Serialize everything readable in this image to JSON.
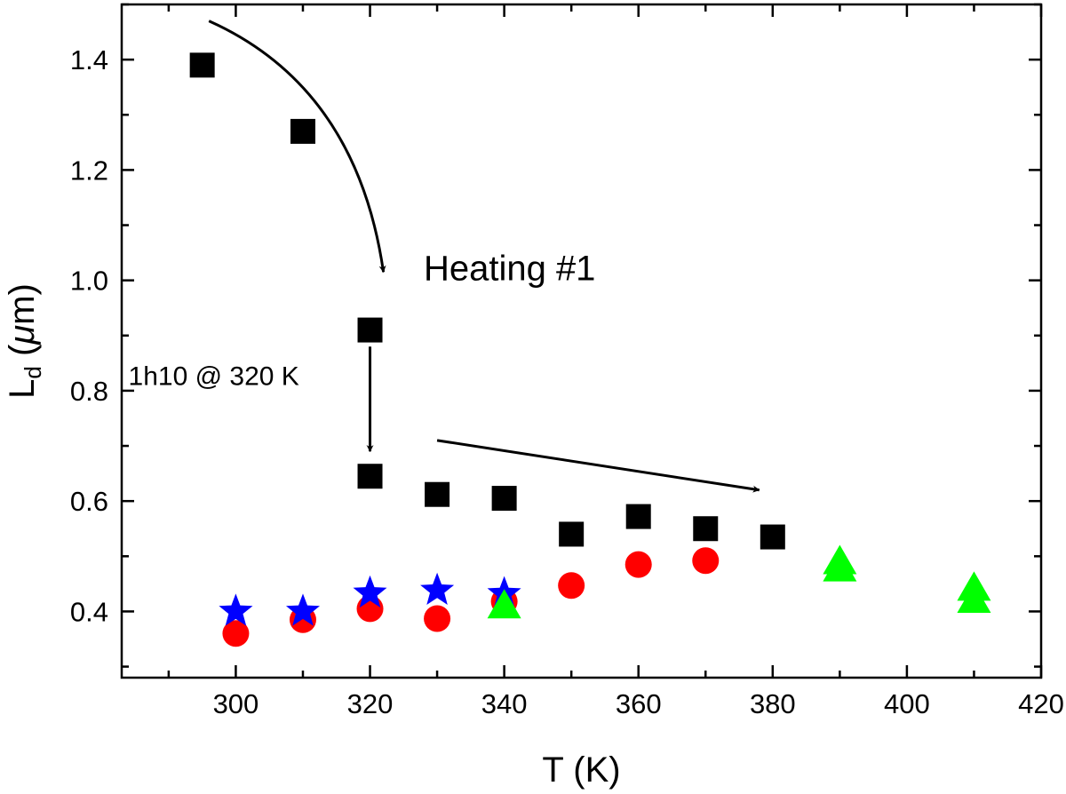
{
  "chart_data": {
    "type": "scatter",
    "xlabel": "T (K)",
    "ylabel": {
      "main": "L",
      "sub": "d",
      "rest": " (",
      "mu": "μ",
      "unit": "m)"
    },
    "xlim": [
      283,
      420
    ],
    "ylim": [
      0.28,
      1.5
    ],
    "x_ticks": [
      300,
      320,
      340,
      360,
      380,
      400,
      420
    ],
    "x_minor_ticks": [
      290,
      310,
      330,
      350,
      370,
      390,
      410
    ],
    "y_ticks": [
      0.4,
      0.6,
      0.8,
      1.0,
      1.2,
      1.4
    ],
    "y_minor_ticks": [
      0.3,
      0.5,
      0.7,
      0.9,
      1.1,
      1.3,
      1.5
    ],
    "x_tick_labels": [
      "300",
      "320",
      "340",
      "360",
      "380",
      "400",
      "420"
    ],
    "y_tick_labels": [
      "0.4",
      "0.6",
      "0.8",
      "1.0",
      "1.2",
      "1.4"
    ],
    "grid": false,
    "legend": "none",
    "series": [
      {
        "marker": "square",
        "color": "#000000",
        "x": [
          295,
          310,
          320,
          320,
          330,
          340,
          350,
          360,
          370,
          380
        ],
        "y": [
          1.39,
          1.27,
          0.91,
          0.645,
          0.612,
          0.605,
          0.54,
          0.572,
          0.55,
          0.535
        ]
      },
      {
        "marker": "circle",
        "color": "#ff0000",
        "x": [
          300,
          310,
          320,
          330,
          340,
          350,
          360,
          370
        ],
        "y": [
          0.36,
          0.385,
          0.405,
          0.387,
          0.418,
          0.447,
          0.485,
          0.492
        ]
      },
      {
        "marker": "star",
        "color": "#0000ff",
        "x": [
          300,
          310,
          320,
          330,
          340
        ],
        "y": [
          0.4,
          0.4,
          0.433,
          0.438,
          0.432
        ]
      },
      {
        "marker": "triangle",
        "color": "#00ff00",
        "x": [
          340,
          390,
          390,
          410,
          410
        ],
        "y": [
          0.41,
          0.49,
          0.477,
          0.442,
          0.42
        ]
      }
    ],
    "annotations": [
      {
        "id": "heating",
        "text": "Heating #1",
        "x": 328,
        "y": 1.0
      },
      {
        "id": "hold",
        "text": "1h10 @ 320 K",
        "x": 284,
        "y": 0.81
      }
    ],
    "arrows": [
      {
        "id": "curved-arrow",
        "curve": true,
        "from": [
          296,
          1.47
        ],
        "ctrl": [
          318,
          1.35
        ],
        "to": [
          322,
          1.015
        ]
      },
      {
        "id": "down-arrow",
        "curve": false,
        "from": [
          320,
          0.88
        ],
        "to": [
          320,
          0.69
        ]
      },
      {
        "id": "right-arrow",
        "curve": false,
        "from": [
          330,
          0.71
        ],
        "to": [
          378,
          0.62
        ]
      }
    ]
  }
}
